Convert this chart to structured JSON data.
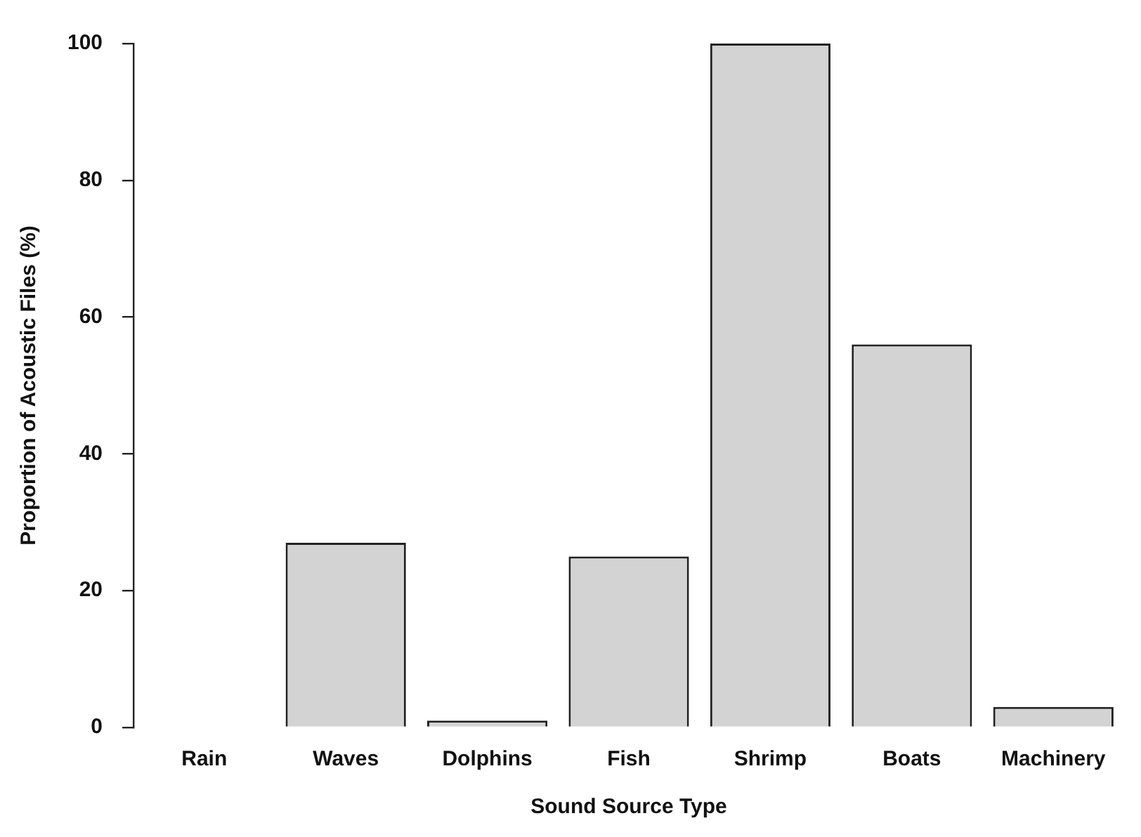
{
  "chart_data": {
    "type": "bar",
    "xlabel": "Sound Source Type",
    "ylabel": "Proportion of Acoustic Files (%)",
    "categories": [
      "Rain",
      "Waves",
      "Dolphins",
      "Fish",
      "Shrimp",
      "Boats",
      "Machinery"
    ],
    "values": [
      0,
      27,
      1,
      25,
      100,
      56,
      3
    ],
    "color": "#d3d3d3",
    "ylim": [
      0,
      100
    ],
    "yticks": [
      0,
      20,
      40,
      60,
      80,
      100
    ],
    "grid": false,
    "legend": false
  }
}
